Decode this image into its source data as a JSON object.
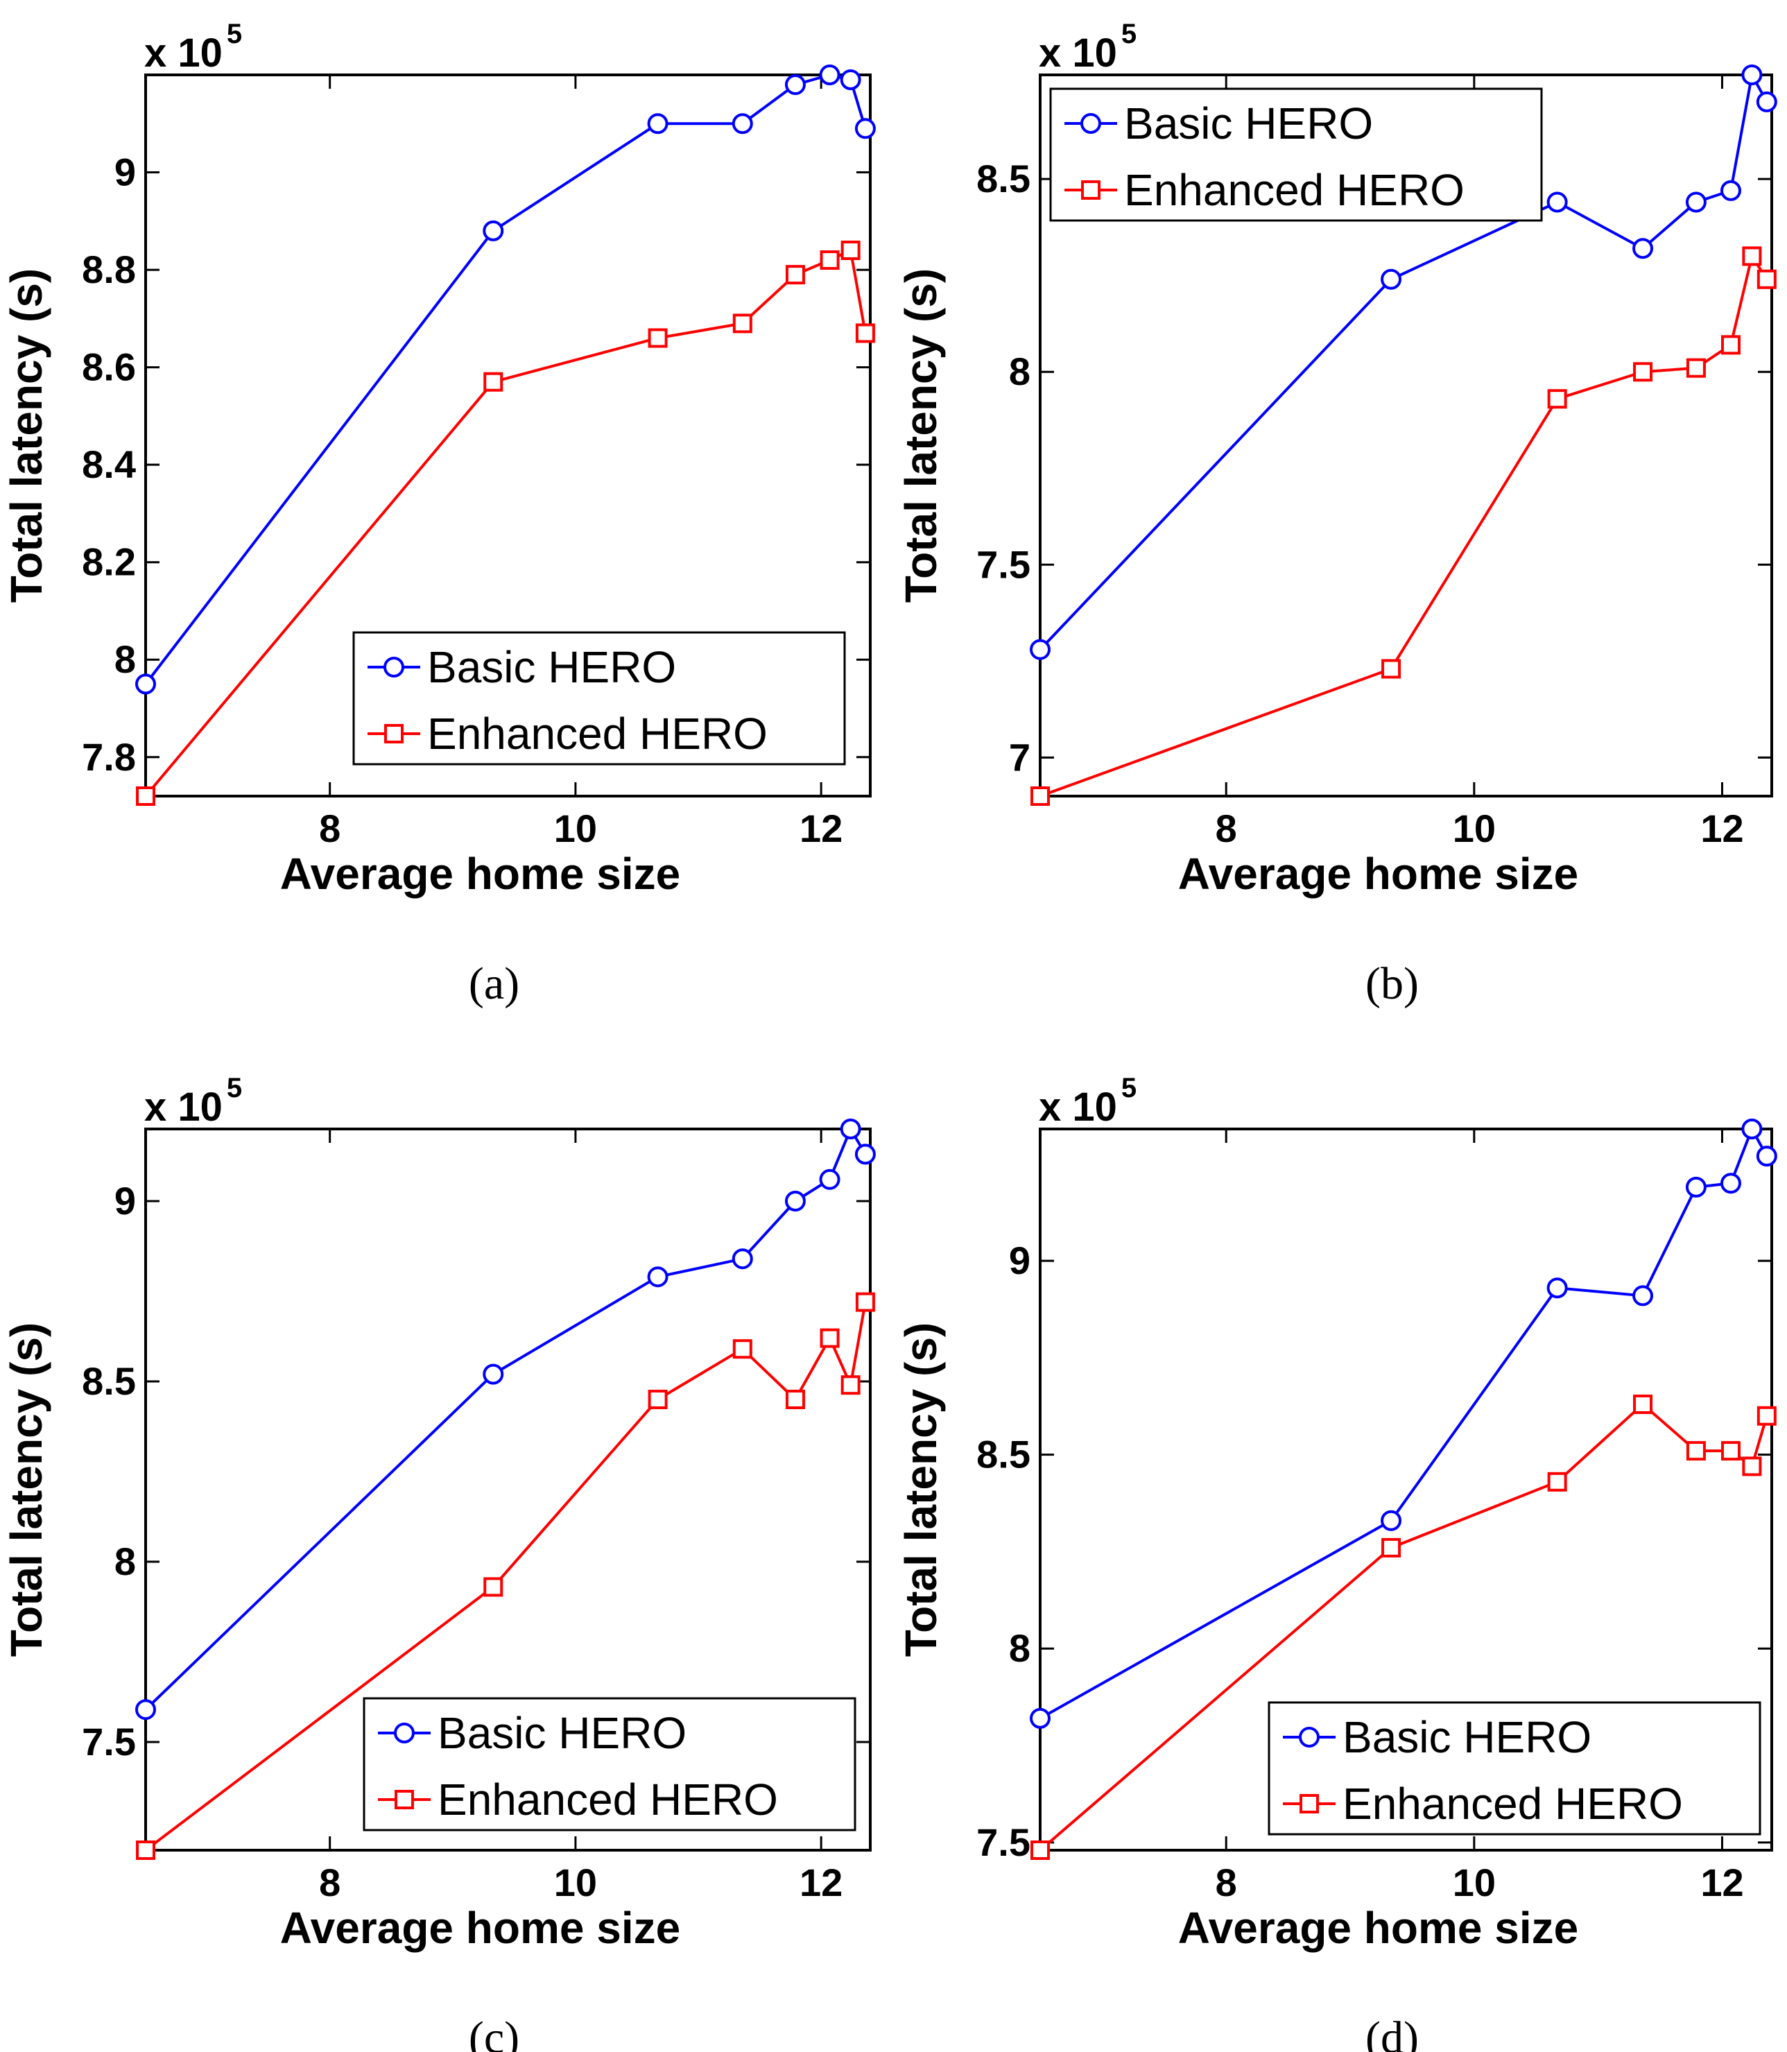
{
  "figure": {
    "colors": {
      "basic": "#0000ff",
      "enhanced": "#ff0000",
      "axis": "#000000"
    },
    "markers": {
      "basic": "circle",
      "enhanced": "square"
    }
  },
  "chart_data": [
    {
      "type": "line",
      "caption": "(a)",
      "xlabel": "Average home size",
      "ylabel": "Total latency (s)",
      "exponent_base": "x 10",
      "exponent_power": "5",
      "xlim": [
        6.5,
        12.4
      ],
      "ylim": [
        7.72,
        9.2
      ],
      "xticks": [
        8,
        10,
        12
      ],
      "xtick_labels": [
        "8",
        "10",
        "12"
      ],
      "yticks": [
        7.8,
        8.0,
        8.2,
        8.4,
        8.6,
        8.8,
        9.0
      ],
      "ytick_labels": [
        "7.8",
        "8",
        "8.2",
        "8.4",
        "8.6",
        "8.8",
        "9"
      ],
      "legend_position": "bottom-right",
      "x": [
        6.5,
        9.33,
        10.67,
        11.36,
        11.79,
        12.07,
        12.24,
        12.36
      ],
      "series": [
        {
          "name": "Basic HERO",
          "values": [
            7.95,
            8.88,
            9.1,
            9.1,
            9.18,
            9.2,
            9.19,
            9.09
          ]
        },
        {
          "name": "Enhanced HERO",
          "values": [
            7.72,
            8.57,
            8.66,
            8.69,
            8.79,
            8.82,
            8.84,
            8.67
          ]
        }
      ]
    },
    {
      "type": "line",
      "caption": "(b)",
      "xlabel": "Average home size",
      "ylabel": "Total latency (s)",
      "exponent_base": "x 10",
      "exponent_power": "5",
      "xlim": [
        6.5,
        12.4
      ],
      "ylim": [
        6.9,
        8.77
      ],
      "xticks": [
        8,
        10,
        12
      ],
      "xtick_labels": [
        "8",
        "10",
        "12"
      ],
      "yticks": [
        7.0,
        7.5,
        8.0,
        8.5
      ],
      "ytick_labels": [
        "7",
        "7.5",
        "8",
        "8.5"
      ],
      "legend_position": "top-left",
      "x": [
        6.5,
        9.33,
        10.67,
        11.36,
        11.79,
        12.07,
        12.24,
        12.36
      ],
      "series": [
        {
          "name": "Basic HERO",
          "values": [
            7.28,
            8.24,
            8.44,
            8.32,
            8.44,
            8.47,
            8.77,
            8.7
          ]
        },
        {
          "name": "Enhanced HERO",
          "values": [
            6.9,
            7.23,
            7.93,
            8.0,
            8.01,
            8.07,
            8.3,
            8.24
          ]
        }
      ]
    },
    {
      "type": "line",
      "caption": "(c)",
      "xlabel": "Average home size",
      "ylabel": "Total latency (s)",
      "exponent_base": "x 10",
      "exponent_power": "5",
      "xlim": [
        6.5,
        12.4
      ],
      "ylim": [
        7.2,
        9.2
      ],
      "xticks": [
        8,
        10,
        12
      ],
      "xtick_labels": [
        "8",
        "10",
        "12"
      ],
      "yticks": [
        7.5,
        8.0,
        8.5,
        9.0
      ],
      "ytick_labels": [
        "7.5",
        "8",
        "8.5",
        "9"
      ],
      "legend_position": "bottom-right",
      "x": [
        6.5,
        9.33,
        10.67,
        11.36,
        11.79,
        12.07,
        12.24,
        12.36
      ],
      "series": [
        {
          "name": "Basic HERO",
          "values": [
            7.59,
            8.52,
            8.79,
            8.84,
            9.0,
            9.06,
            9.2,
            9.13
          ]
        },
        {
          "name": "Enhanced HERO",
          "values": [
            7.2,
            7.93,
            8.45,
            8.59,
            8.45,
            8.62,
            8.49,
            8.72
          ]
        }
      ]
    },
    {
      "type": "line",
      "caption": "(d)",
      "xlabel": "Average home size",
      "ylabel": "Total latency (s)",
      "exponent_base": "x 10",
      "exponent_power": "5",
      "xlim": [
        6.5,
        12.4
      ],
      "ylim": [
        7.48,
        9.34
      ],
      "xticks": [
        8,
        10,
        12
      ],
      "xtick_labels": [
        "8",
        "10",
        "12"
      ],
      "yticks": [
        7.5,
        8.0,
        8.5,
        9.0
      ],
      "ytick_labels": [
        "7.5",
        "8",
        "8.5",
        "9"
      ],
      "legend_position": "bottom-right",
      "x": [
        6.5,
        9.33,
        10.67,
        11.36,
        11.79,
        12.07,
        12.24,
        12.36
      ],
      "series": [
        {
          "name": "Basic HERO",
          "values": [
            7.82,
            8.33,
            8.93,
            8.91,
            9.19,
            9.2,
            9.34,
            9.27
          ]
        },
        {
          "name": "Enhanced HERO",
          "values": [
            7.48,
            8.26,
            8.43,
            8.63,
            8.51,
            8.51,
            8.47,
            8.6
          ]
        }
      ]
    }
  ]
}
